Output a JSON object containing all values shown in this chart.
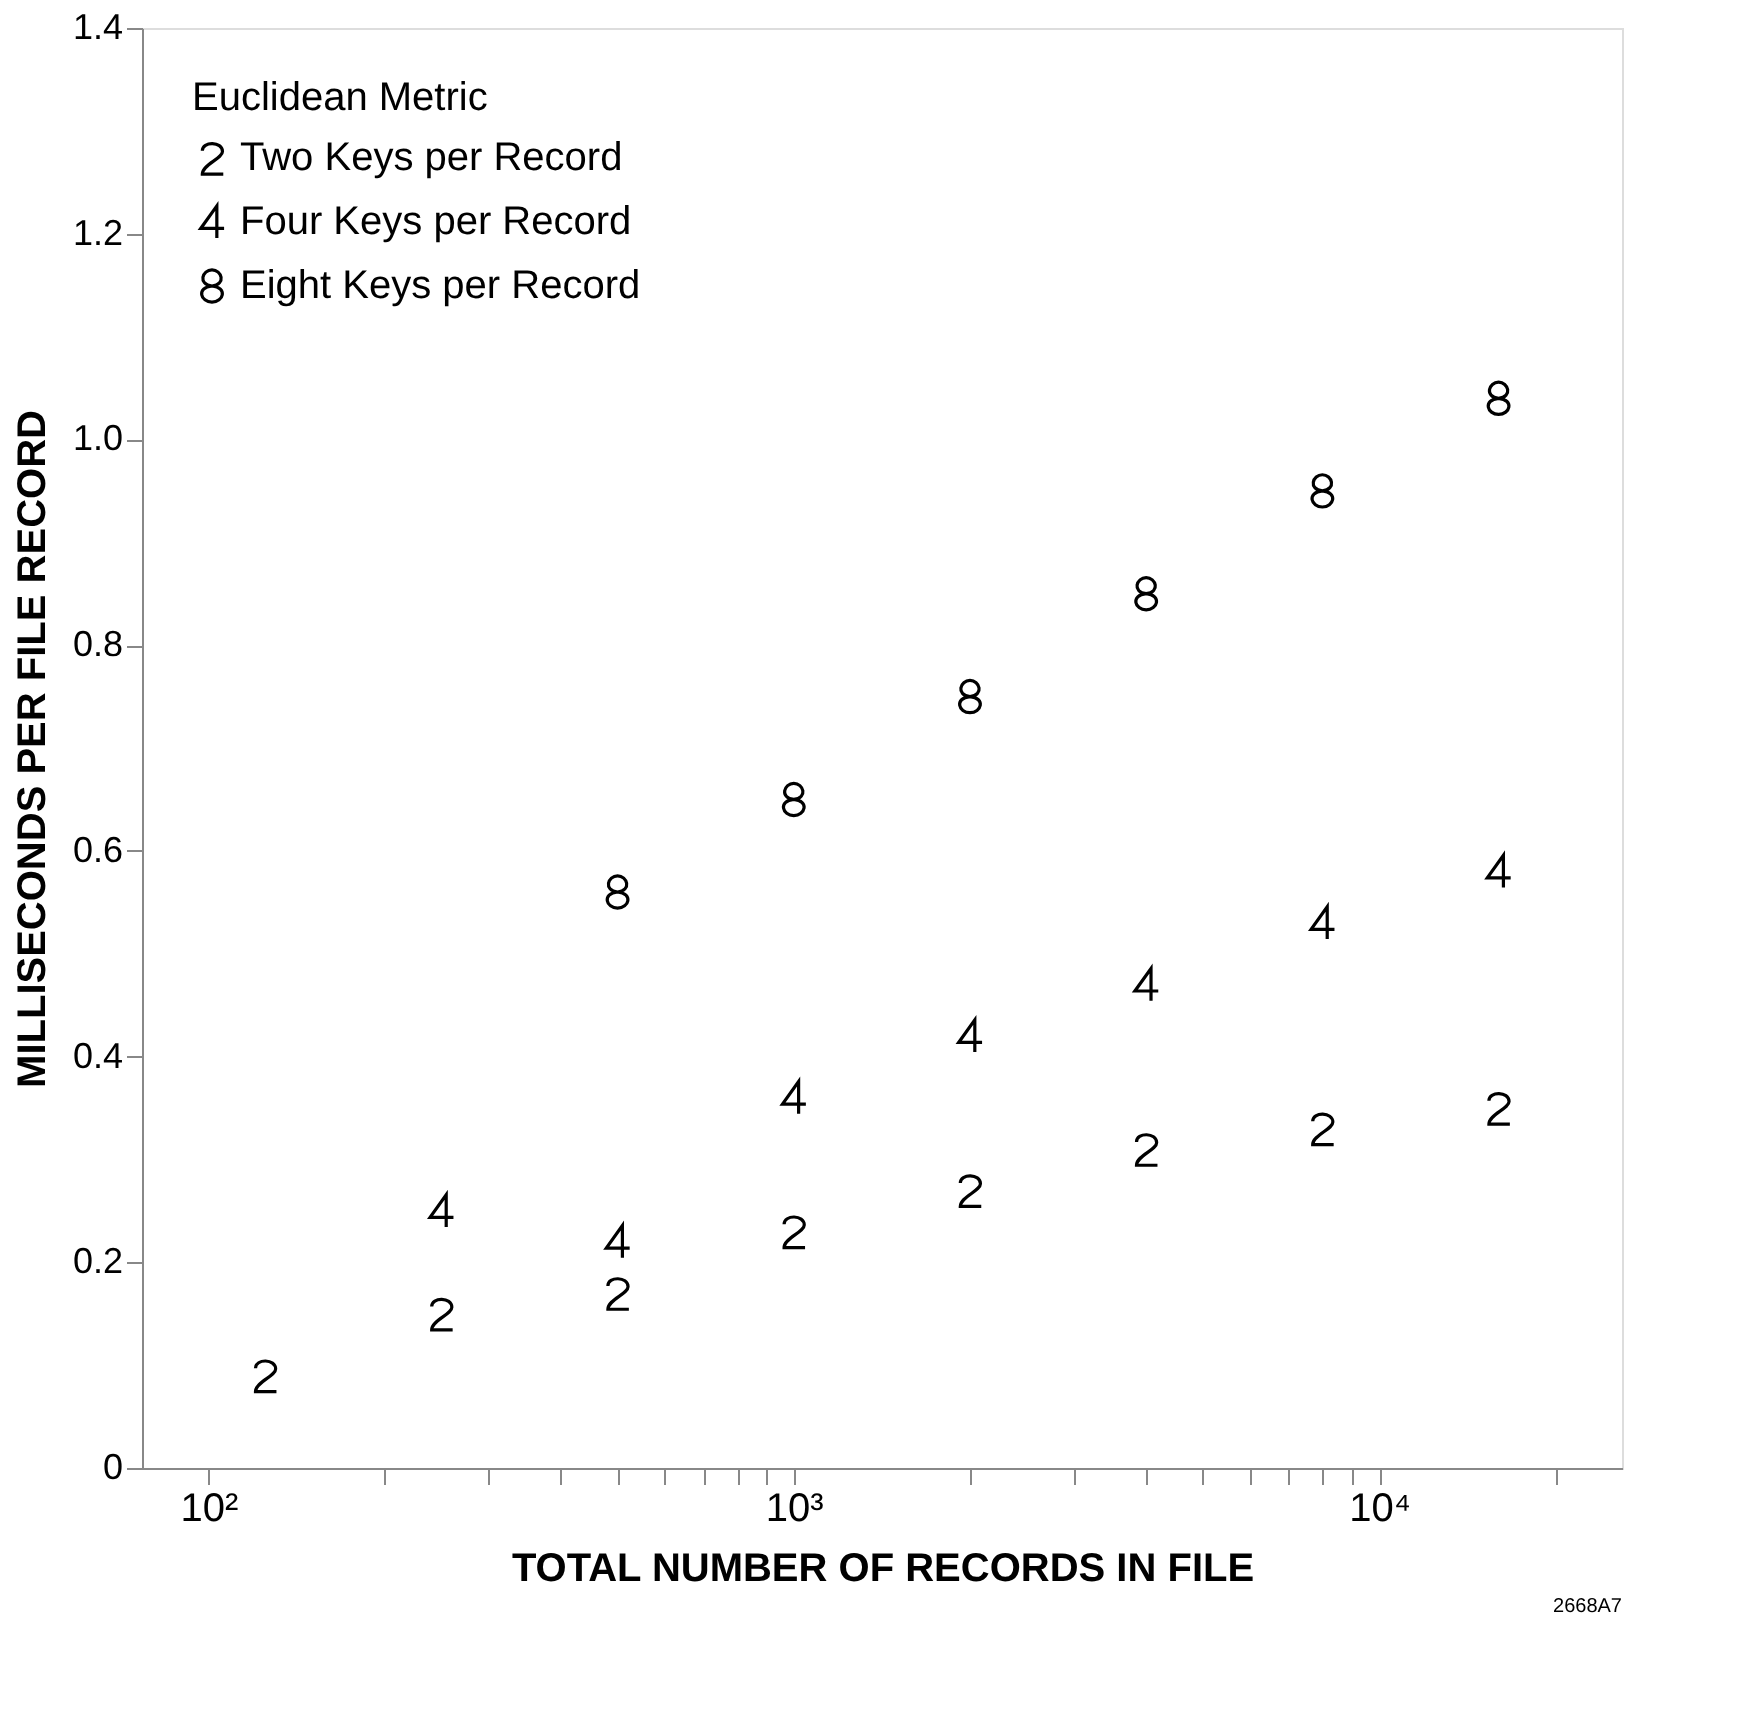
{
  "chart_data": {
    "type": "scatter",
    "xlabel": "TOTAL NUMBER OF RECORDS IN FILE",
    "ylabel": "MILLISECONDS PER FILE RECORD",
    "legend_title": "Euclidean Metric",
    "legend": "top left",
    "grid": false,
    "log": "x",
    "xlim": [
      77,
      26000
    ],
    "xticks": [
      {
        "value": 100,
        "label": "10²"
      },
      {
        "value": 200,
        "label": null
      },
      {
        "value": 300,
        "label": null
      },
      {
        "value": 400,
        "label": null
      },
      {
        "value": 500,
        "label": null
      },
      {
        "value": 600,
        "label": null
      },
      {
        "value": 700,
        "label": null
      },
      {
        "value": 800,
        "label": null
      },
      {
        "value": 900,
        "label": null
      },
      {
        "value": 1000,
        "label": "10³"
      },
      {
        "value": 2000,
        "label": null
      },
      {
        "value": 3000,
        "label": null
      },
      {
        "value": 4000,
        "label": null
      },
      {
        "value": 5000,
        "label": null
      },
      {
        "value": 6000,
        "label": null
      },
      {
        "value": 7000,
        "label": null
      },
      {
        "value": 8000,
        "label": null
      },
      {
        "value": 9000,
        "label": null
      },
      {
        "value": 10000,
        "label": "10⁴"
      },
      {
        "value": 20000,
        "label": null
      }
    ],
    "ylim": [
      0,
      1.4
    ],
    "yticks": [
      0,
      0.2,
      0.4,
      0.6,
      0.8,
      {
        "value": 1.0,
        "label": "1.0"
      },
      1.2,
      1.4
    ],
    "series": [
      {
        "name": "Two Keys per Record",
        "color": "#000000",
        "x": [
          125,
          250,
          500,
          1000,
          2000,
          4000,
          8000,
          16000
        ],
        "values": [
          0.09,
          0.15,
          0.17,
          0.23,
          0.27,
          0.31,
          0.33,
          0.35
        ]
      },
      {
        "name": "Four Keys per Record",
        "color": "#000000",
        "x": [
          250,
          500,
          1000,
          2000,
          4000,
          8000,
          16000
        ],
        "values": [
          0.25,
          0.22,
          0.36,
          0.42,
          0.47,
          0.53,
          0.58
        ]
      },
      {
        "name": "Eight Keys per Record",
        "color": "#000000",
        "x": [
          500,
          1000,
          2000,
          4000,
          8000,
          16000
        ],
        "values": [
          0.56,
          0.65,
          0.75,
          0.85,
          0.95,
          1.04
        ]
      }
    ],
    "annotations": [
      "2668A7"
    ]
  }
}
